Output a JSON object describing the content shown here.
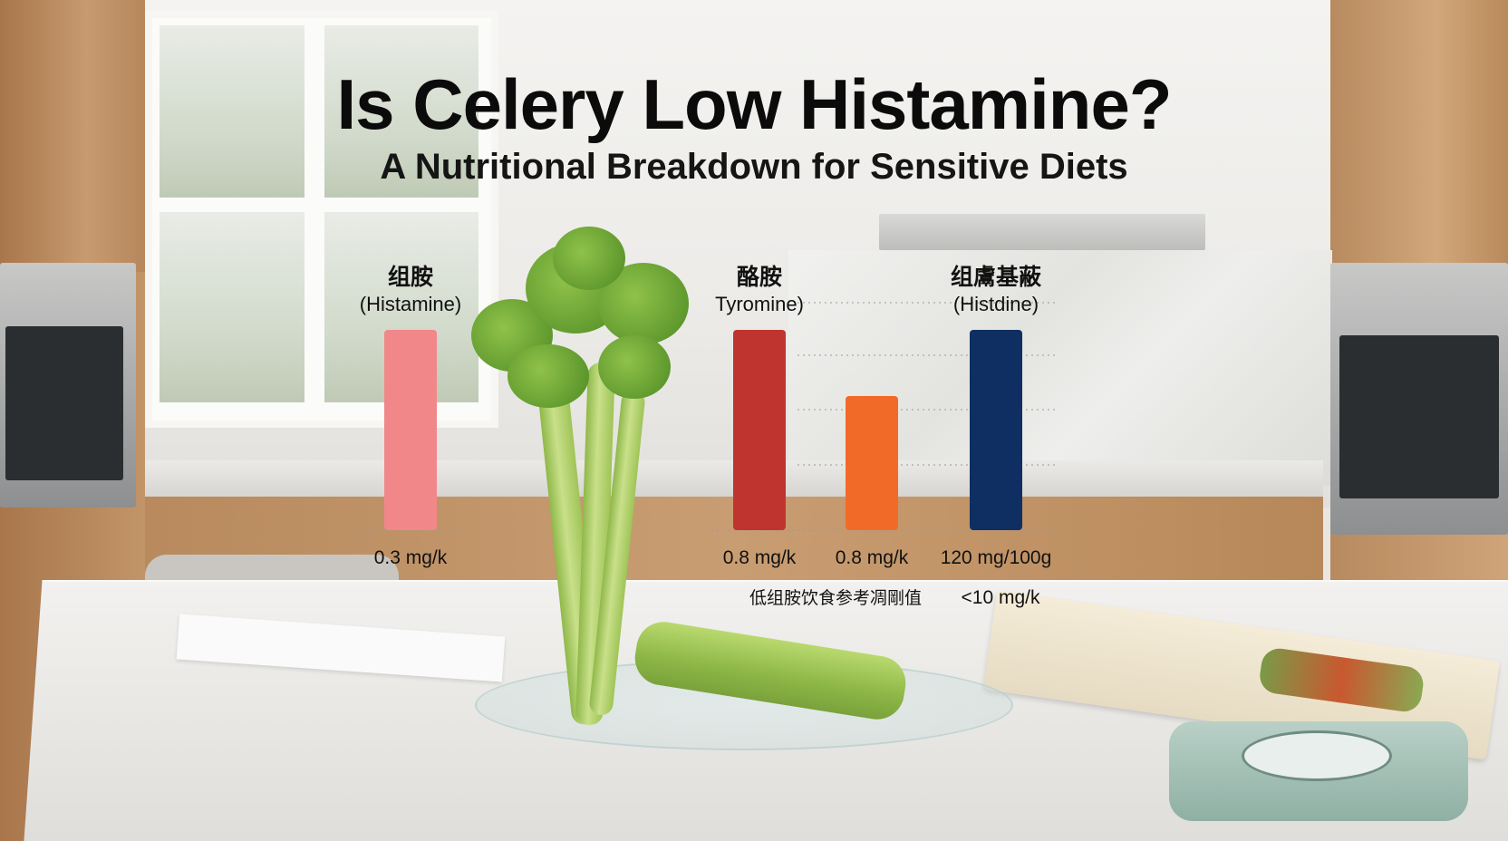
{
  "title": "Is Celery Low Histamine?",
  "subtitle": "A Nutritional Breakdown for Sensitive Diets",
  "chart_data": {
    "type": "bar",
    "bars": [
      {
        "name_cn": "组胺",
        "name_en": "(Histamine)",
        "value": 0.3,
        "value_label": "0.3 mg/k",
        "color": "#f2878a"
      },
      {
        "name_cn": "酪胺",
        "name_en": "Tyromine)",
        "value": 0.8,
        "value_label": "0.8 mg/k",
        "color": "#c0342f"
      },
      {
        "name_cn": "",
        "name_en": "",
        "value": 0.8,
        "value_label": "0.8 mg/k",
        "color": "#f26a28"
      },
      {
        "name_cn": "组鬳基蔽",
        "name_en": "(Histdine)",
        "value": 120,
        "value_label": "120 mg/100g",
        "color": "#0f2f63"
      }
    ],
    "reference": {
      "label": "低组胺饮食参考凋剛值",
      "value_label": "<10 mg/k"
    },
    "grid": "dotted horizontal",
    "legend": "none"
  }
}
